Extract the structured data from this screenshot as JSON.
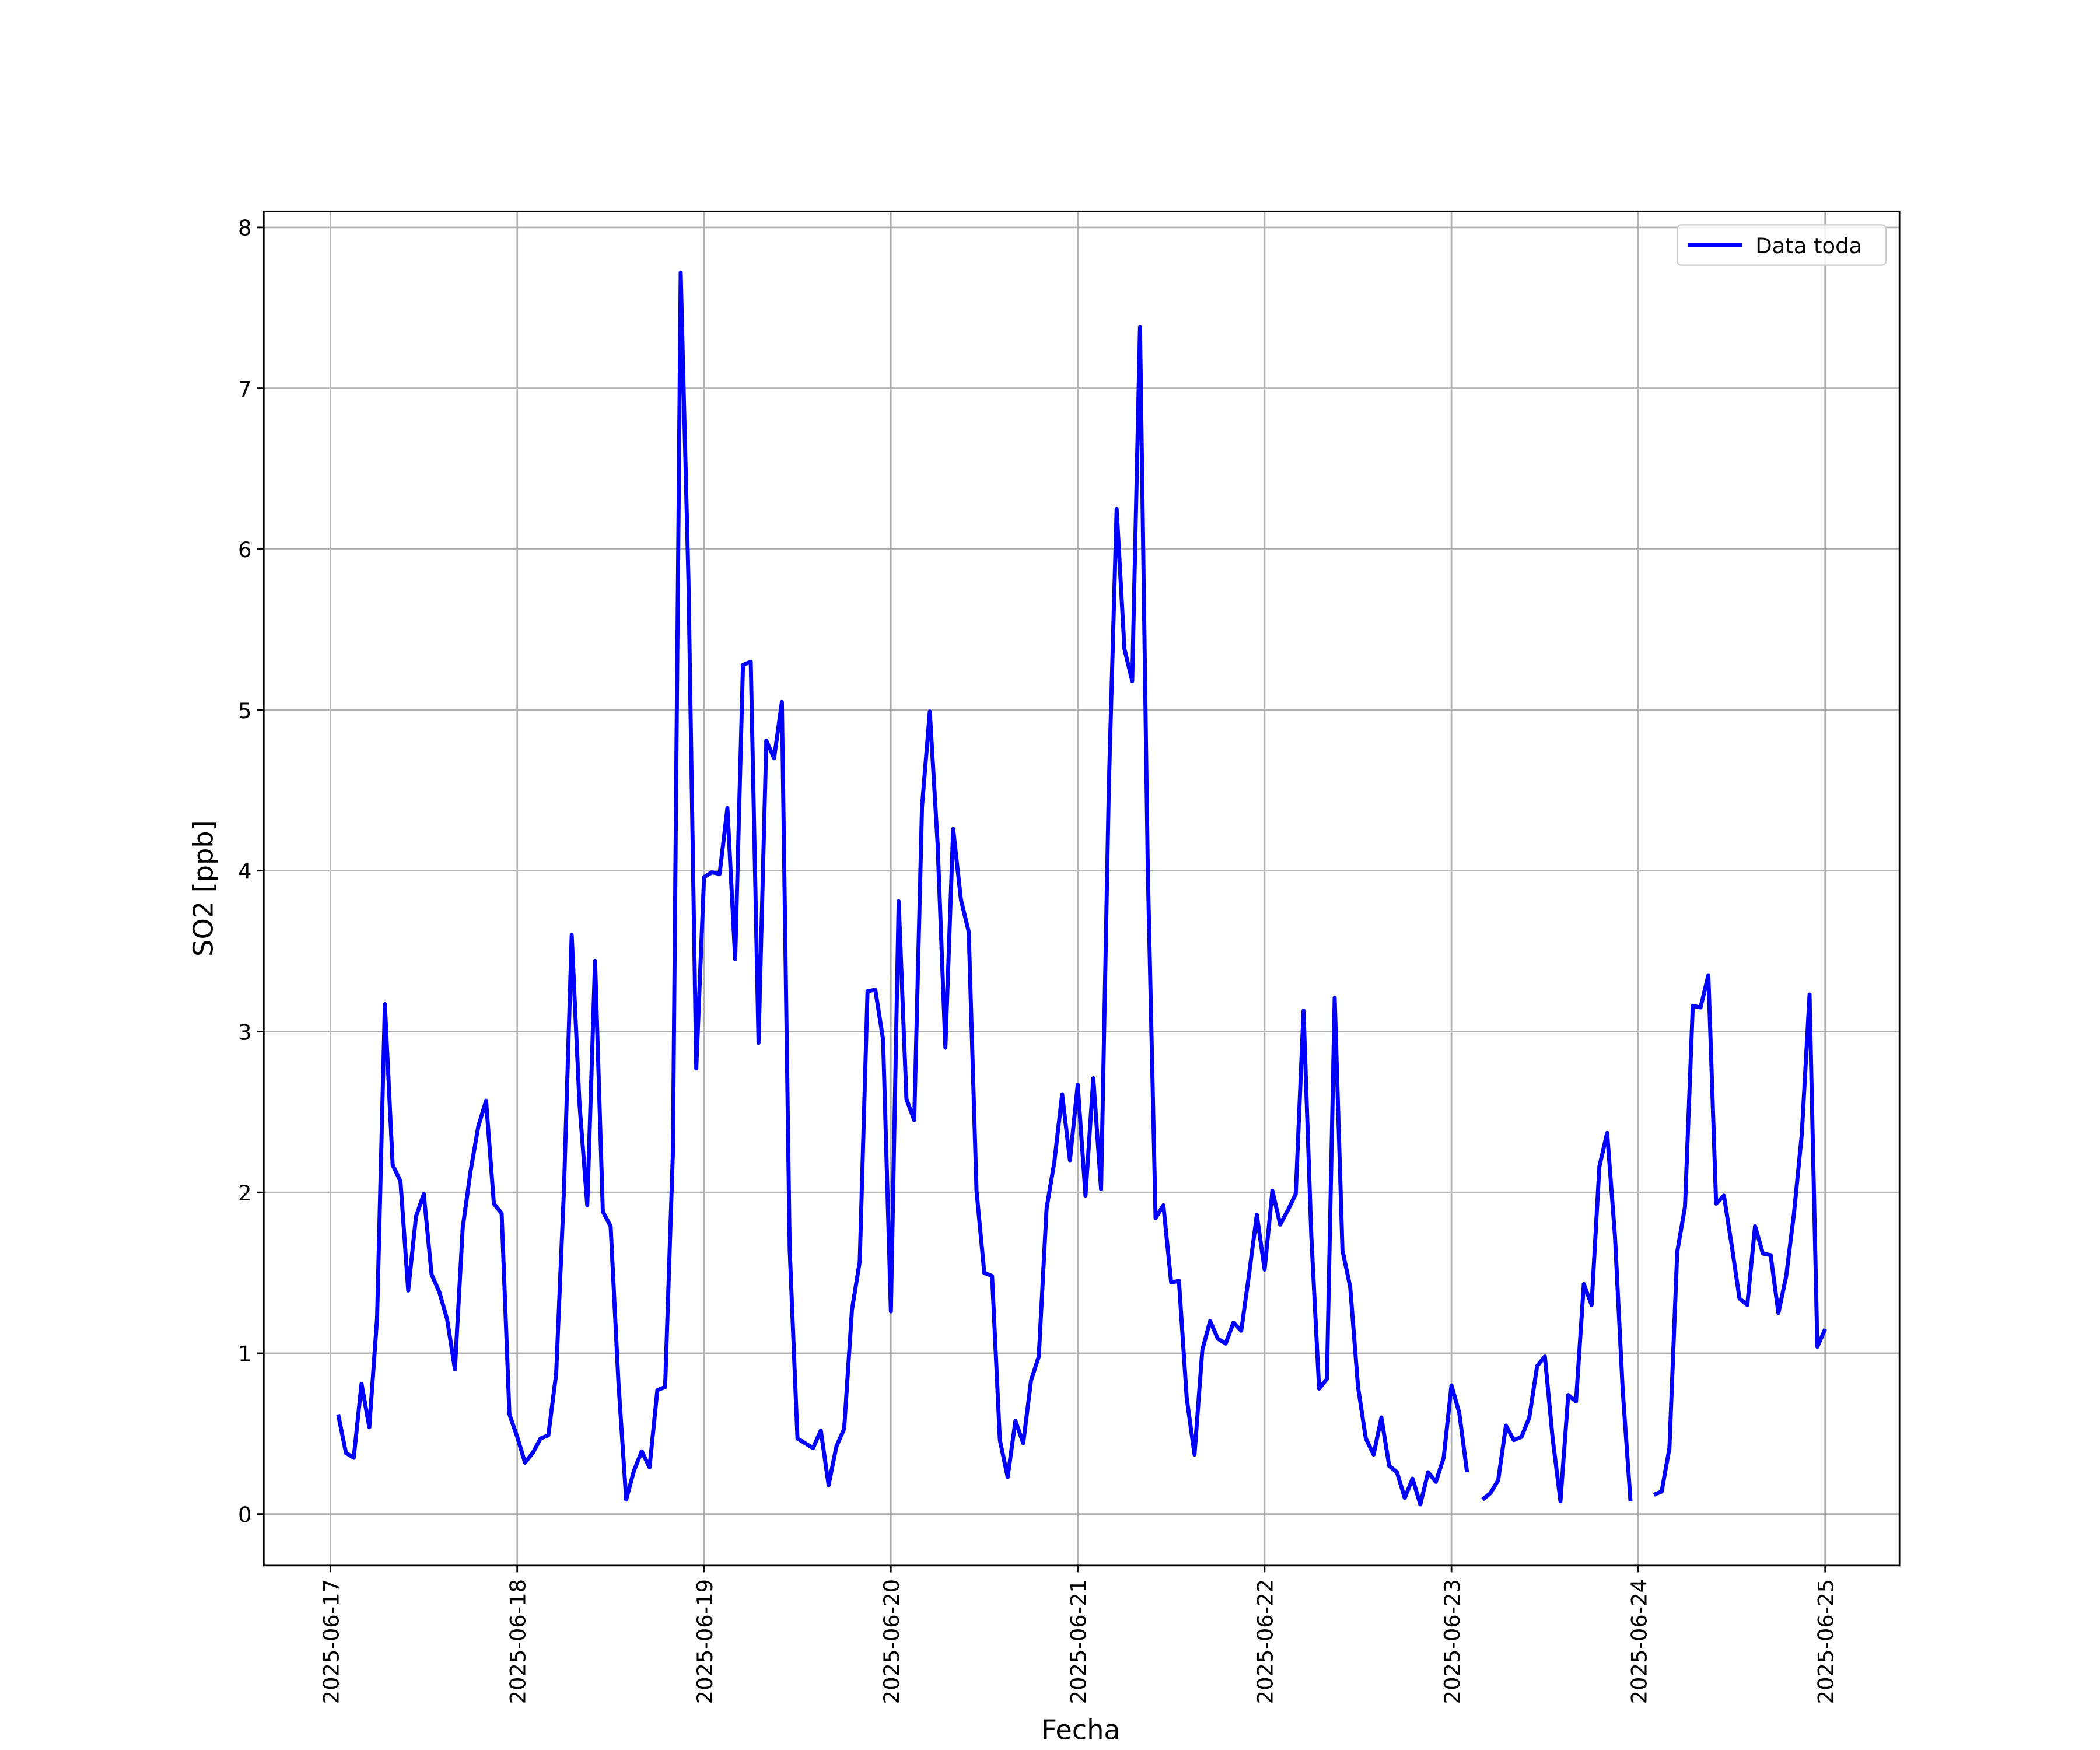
{
  "chart_data": {
    "type": "line",
    "xlabel": "Fecha",
    "ylabel": "SO2 [ppb]",
    "x": [
      "2025-06-17T01:00",
      "2025-06-17T02:00",
      "2025-06-17T03:00",
      "2025-06-17T04:00",
      "2025-06-17T05:00",
      "2025-06-17T06:00",
      "2025-06-17T07:00",
      "2025-06-17T08:00",
      "2025-06-17T09:00",
      "2025-06-17T10:00",
      "2025-06-17T11:00",
      "2025-06-17T12:00",
      "2025-06-17T13:00",
      "2025-06-17T14:00",
      "2025-06-17T15:00",
      "2025-06-17T16:00",
      "2025-06-17T17:00",
      "2025-06-17T18:00",
      "2025-06-17T19:00",
      "2025-06-17T20:00",
      "2025-06-17T21:00",
      "2025-06-17T22:00",
      "2025-06-17T23:00",
      "2025-06-18T00:00",
      "2025-06-18T01:00",
      "2025-06-18T02:00",
      "2025-06-18T03:00",
      "2025-06-18T04:00",
      "2025-06-18T05:00",
      "2025-06-18T06:00",
      "2025-06-18T07:00",
      "2025-06-18T08:00",
      "2025-06-18T09:00",
      "2025-06-18T10:00",
      "2025-06-18T11:00",
      "2025-06-18T12:00",
      "2025-06-18T13:00",
      "2025-06-18T14:00",
      "2025-06-18T15:00",
      "2025-06-18T16:00",
      "2025-06-18T17:00",
      "2025-06-18T18:00",
      "2025-06-18T19:00",
      "2025-06-18T20:00",
      "2025-06-18T21:00",
      "2025-06-18T22:00",
      "2025-06-18T23:00",
      "2025-06-19T00:00",
      "2025-06-19T01:00",
      "2025-06-19T02:00",
      "2025-06-19T03:00",
      "2025-06-19T04:00",
      "2025-06-19T05:00",
      "2025-06-19T06:00",
      "2025-06-19T07:00",
      "2025-06-19T08:00",
      "2025-06-19T09:00",
      "2025-06-19T10:00",
      "2025-06-19T11:00",
      "2025-06-19T12:00",
      "2025-06-19T13:00",
      "2025-06-19T14:00",
      "2025-06-19T15:00",
      "2025-06-19T16:00",
      "2025-06-19T17:00",
      "2025-06-19T18:00",
      "2025-06-19T19:00",
      "2025-06-19T20:00",
      "2025-06-19T21:00",
      "2025-06-19T22:00",
      "2025-06-19T23:00",
      "2025-06-20T00:00",
      "2025-06-20T01:00",
      "2025-06-20T02:00",
      "2025-06-20T03:00",
      "2025-06-20T04:00",
      "2025-06-20T05:00",
      "2025-06-20T06:00",
      "2025-06-20T07:00",
      "2025-06-20T08:00",
      "2025-06-20T09:00",
      "2025-06-20T10:00",
      "2025-06-20T11:00",
      "2025-06-20T12:00",
      "2025-06-20T13:00",
      "2025-06-20T14:00",
      "2025-06-20T15:00",
      "2025-06-20T16:00",
      "2025-06-20T17:00",
      "2025-06-20T18:00",
      "2025-06-20T19:00",
      "2025-06-20T20:00",
      "2025-06-20T21:00",
      "2025-06-20T22:00",
      "2025-06-20T23:00",
      "2025-06-21T00:00",
      "2025-06-21T01:00",
      "2025-06-21T02:00",
      "2025-06-21T03:00",
      "2025-06-21T04:00",
      "2025-06-21T05:00",
      "2025-06-21T06:00",
      "2025-06-21T07:00",
      "2025-06-21T08:00",
      "2025-06-21T09:00",
      "2025-06-21T10:00",
      "2025-06-21T11:00",
      "2025-06-21T12:00",
      "2025-06-21T13:00",
      "2025-06-21T14:00",
      "2025-06-21T15:00",
      "2025-06-21T16:00",
      "2025-06-21T17:00",
      "2025-06-21T18:00",
      "2025-06-21T19:00",
      "2025-06-21T20:00",
      "2025-06-21T21:00",
      "2025-06-21T22:00",
      "2025-06-21T23:00",
      "2025-06-22T00:00",
      "2025-06-22T01:00",
      "2025-06-22T02:00",
      "2025-06-22T03:00",
      "2025-06-22T04:00",
      "2025-06-22T05:00",
      "2025-06-22T06:00",
      "2025-06-22T07:00",
      "2025-06-22T08:00",
      "2025-06-22T09:00",
      "2025-06-22T10:00",
      "2025-06-22T11:00",
      "2025-06-22T12:00",
      "2025-06-22T13:00",
      "2025-06-22T14:00",
      "2025-06-22T15:00",
      "2025-06-22T16:00",
      "2025-06-22T17:00",
      "2025-06-22T18:00",
      "2025-06-22T19:00",
      "2025-06-22T20:00",
      "2025-06-22T21:00",
      "2025-06-22T22:00",
      "2025-06-22T23:00",
      "2025-06-23T00:00",
      "2025-06-23T01:00",
      "2025-06-23T02:00",
      "2025-06-23T03:00",
      "2025-06-23T04:00",
      "2025-06-23T05:00",
      "2025-06-23T06:00",
      "2025-06-23T07:00",
      "2025-06-23T08:00",
      "2025-06-23T09:00",
      "2025-06-23T10:00",
      "2025-06-23T11:00",
      "2025-06-23T12:00",
      "2025-06-23T13:00",
      "2025-06-23T14:00",
      "2025-06-23T15:00",
      "2025-06-23T16:00",
      "2025-06-23T17:00",
      "2025-06-23T18:00",
      "2025-06-23T19:00",
      "2025-06-23T20:00",
      "2025-06-23T21:00",
      "2025-06-23T22:00",
      "2025-06-23T23:00",
      "2025-06-24T00:00",
      "2025-06-24T01:00",
      "2025-06-24T02:00",
      "2025-06-24T03:00",
      "2025-06-24T04:00",
      "2025-06-24T05:00",
      "2025-06-24T06:00",
      "2025-06-24T07:00",
      "2025-06-24T08:00",
      "2025-06-24T09:00",
      "2025-06-24T10:00",
      "2025-06-24T11:00",
      "2025-06-24T12:00",
      "2025-06-24T13:00",
      "2025-06-24T14:00",
      "2025-06-24T15:00",
      "2025-06-24T16:00",
      "2025-06-24T17:00",
      "2025-06-24T18:00",
      "2025-06-24T19:00",
      "2025-06-24T20:00",
      "2025-06-24T21:00",
      "2025-06-24T22:00",
      "2025-06-24T23:00",
      "2025-06-25T00:00"
    ],
    "series": [
      {
        "name": "Data toda",
        "color": "#0000ff",
        "values": [
          0.62,
          0.38,
          0.35,
          0.81,
          0.54,
          1.22,
          3.17,
          2.17,
          2.07,
          1.39,
          1.85,
          1.99,
          1.49,
          1.38,
          1.21,
          0.9,
          1.78,
          2.13,
          2.41,
          2.57,
          1.93,
          1.87,
          0.62,
          0.48,
          0.32,
          0.38,
          0.47,
          0.49,
          0.87,
          2.01,
          3.6,
          2.55,
          1.92,
          3.44,
          1.88,
          1.79,
          0.82,
          0.09,
          0.27,
          0.39,
          0.29,
          0.77,
          0.79,
          2.25,
          7.72,
          5.8,
          2.77,
          3.96,
          3.99,
          3.98,
          4.39,
          3.45,
          5.28,
          5.3,
          2.93,
          4.81,
          4.7,
          5.05,
          1.65,
          0.47,
          0.44,
          0.41,
          0.52,
          0.18,
          0.42,
          0.53,
          1.27,
          1.57,
          3.25,
          3.26,
          2.95,
          1.26,
          3.81,
          2.58,
          2.45,
          4.4,
          4.99,
          4.17,
          2.9,
          4.26,
          3.82,
          3.62,
          2.01,
          1.5,
          1.48,
          0.46,
          0.23,
          0.58,
          0.44,
          0.83,
          0.98,
          1.9,
          2.19,
          2.61,
          2.2,
          2.67,
          1.98,
          2.71,
          2.02,
          4.53,
          6.25,
          5.38,
          5.18,
          7.38,
          4.01,
          1.84,
          1.92,
          1.44,
          1.45,
          0.72,
          0.37,
          1.02,
          1.2,
          1.09,
          1.06,
          1.19,
          1.14,
          1.49,
          1.86,
          1.52,
          2.01,
          1.8,
          1.89,
          1.99,
          3.13,
          1.73,
          0.78,
          0.84,
          3.21,
          1.64,
          1.41,
          0.79,
          0.47,
          0.37,
          0.6,
          0.3,
          0.26,
          0.1,
          0.22,
          0.06,
          0.26,
          0.2,
          0.35,
          0.8,
          0.63,
          0.26,
          null,
          0.09,
          0.13,
          0.21,
          0.55,
          0.46,
          0.48,
          0.6,
          0.92,
          0.98,
          0.47,
          0.08,
          0.74,
          0.7,
          1.43,
          1.3,
          2.16,
          2.37,
          1.73,
          0.77,
          0.08,
          null,
          null,
          0.12,
          0.14,
          0.41,
          1.63,
          1.91,
          3.16,
          3.15,
          3.35,
          1.93,
          1.98,
          1.67,
          1.34,
          1.3,
          1.79,
          1.62,
          1.61,
          1.25,
          1.48,
          1.87,
          2.36,
          3.23,
          1.04,
          1.15
        ]
      }
    ],
    "xlim": [
      "2025-06-16T15:27",
      "2025-06-25T09:33"
    ],
    "xticks": [
      "2025-06-17",
      "2025-06-18",
      "2025-06-19",
      "2025-06-20",
      "2025-06-21",
      "2025-06-22",
      "2025-06-23",
      "2025-06-24",
      "2025-06-25"
    ],
    "ylim": [
      -0.32,
      8.1
    ],
    "yticks": [
      0,
      1,
      2,
      3,
      4,
      5,
      6,
      7,
      8
    ],
    "grid": true,
    "legend": "upper right"
  }
}
